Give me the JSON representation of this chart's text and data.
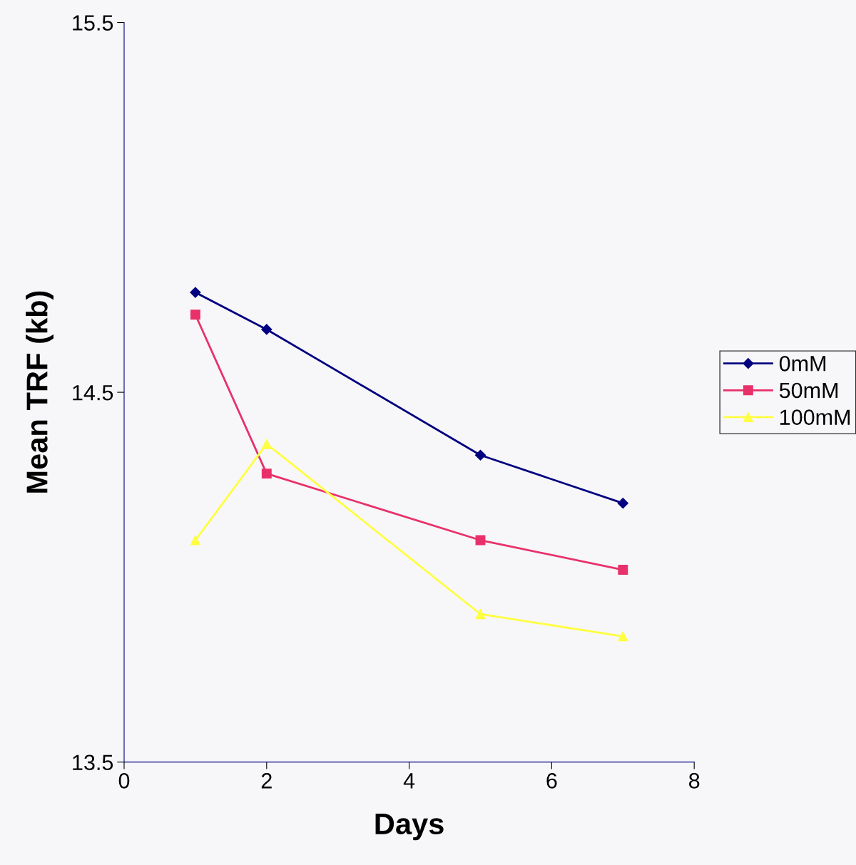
{
  "chart_data": {
    "type": "line",
    "xlabel": "Days",
    "ylabel": "Mean TRF (kb)",
    "xlim": [
      0,
      8
    ],
    "xticks": [
      0,
      2,
      4,
      6,
      8
    ],
    "ylim": [
      13.5,
      15.5
    ],
    "yticks": [
      13.5,
      14.5,
      15.5
    ],
    "x": [
      1,
      2,
      5,
      7
    ],
    "grid": false,
    "legend": "right",
    "line_style": "solid",
    "series": [
      {
        "name": "0mM",
        "color": "#000080",
        "marker": "diamond",
        "values": [
          14.77,
          14.67,
          14.33,
          14.2
        ]
      },
      {
        "name": "50mM",
        "color": "#e8316a",
        "marker": "square",
        "values": [
          14.71,
          14.28,
          14.1,
          14.02
        ]
      },
      {
        "name": "100mM",
        "color": "#ffff40",
        "marker": "triangle",
        "values": [
          14.1,
          14.36,
          13.9,
          13.84
        ]
      }
    ]
  }
}
